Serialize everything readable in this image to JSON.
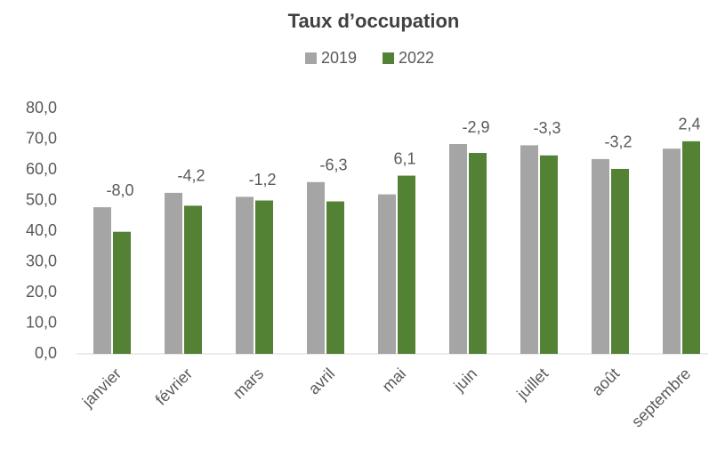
{
  "chart_data": {
    "type": "bar",
    "title": "Taux d’occupation",
    "categories": [
      "janvier",
      "février",
      "mars",
      "avril",
      "mai",
      "juin",
      "juillet",
      "août",
      "septembre"
    ],
    "series": [
      {
        "name": "2019",
        "color": "#a5a5a5",
        "values": [
          47.8,
          52.5,
          51.2,
          56.0,
          52.0,
          68.4,
          68.0,
          63.5,
          66.9
        ]
      },
      {
        "name": "2022",
        "color": "#548235",
        "values": [
          39.8,
          48.3,
          50.0,
          49.7,
          58.1,
          65.5,
          64.7,
          60.3,
          69.3
        ]
      }
    ],
    "differences": {
      "values": [
        -8.0,
        -4.2,
        -1.2,
        -6.3,
        6.1,
        -2.9,
        -3.3,
        -3.2,
        2.4
      ],
      "value_labels": [
        "-8,0",
        "-4,2",
        "-1,2",
        "-6,3",
        "6,1",
        "-2,9",
        "-3,3",
        "-3,2",
        "2,4"
      ]
    },
    "ylim": [
      0,
      80
    ],
    "yticks": [
      {
        "value": 0,
        "label": "0,0"
      },
      {
        "value": 10,
        "label": "10,0"
      },
      {
        "value": 20,
        "label": "20,0"
      },
      {
        "value": 30,
        "label": "30,0"
      },
      {
        "value": 40,
        "label": "40,0"
      },
      {
        "value": 50,
        "label": "50,0"
      },
      {
        "value": 60,
        "label": "60,0"
      },
      {
        "value": 70,
        "label": "70,0"
      },
      {
        "value": 80,
        "label": "80,0"
      }
    ],
    "grid": false,
    "legend": "top"
  }
}
